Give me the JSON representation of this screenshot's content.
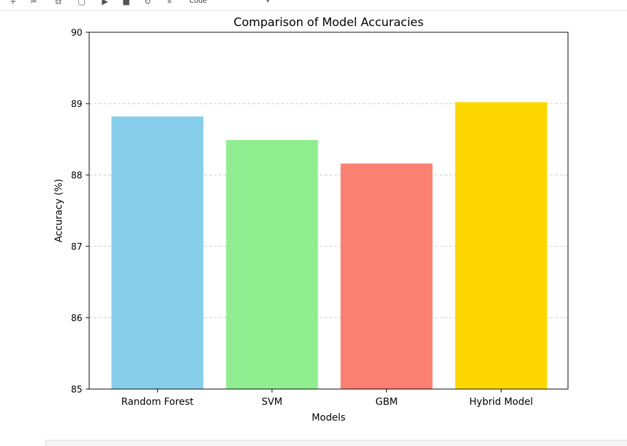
{
  "toolbar": {
    "icons": [
      "add-icon",
      "cut-icon",
      "copy-icon",
      "paste-icon",
      "run-icon",
      "stop-icon",
      "restart-icon",
      "fast-forward-icon"
    ],
    "cell_type": "Code"
  },
  "chart_data": {
    "type": "bar",
    "title": "Comparison of Model Accuracies",
    "xlabel": "Models",
    "ylabel": "Accuracy (%)",
    "categories": [
      "Random Forest",
      "SVM",
      "GBM",
      "Hybrid Model"
    ],
    "values": [
      88.82,
      88.49,
      88.16,
      89.02
    ],
    "colors": [
      "#87ceeb",
      "#90ee90",
      "#fa8072",
      "#ffd700"
    ],
    "ylim": [
      85,
      90
    ],
    "yticks": [
      85,
      86,
      87,
      88,
      89,
      90
    ],
    "grid": "y-dashed"
  }
}
